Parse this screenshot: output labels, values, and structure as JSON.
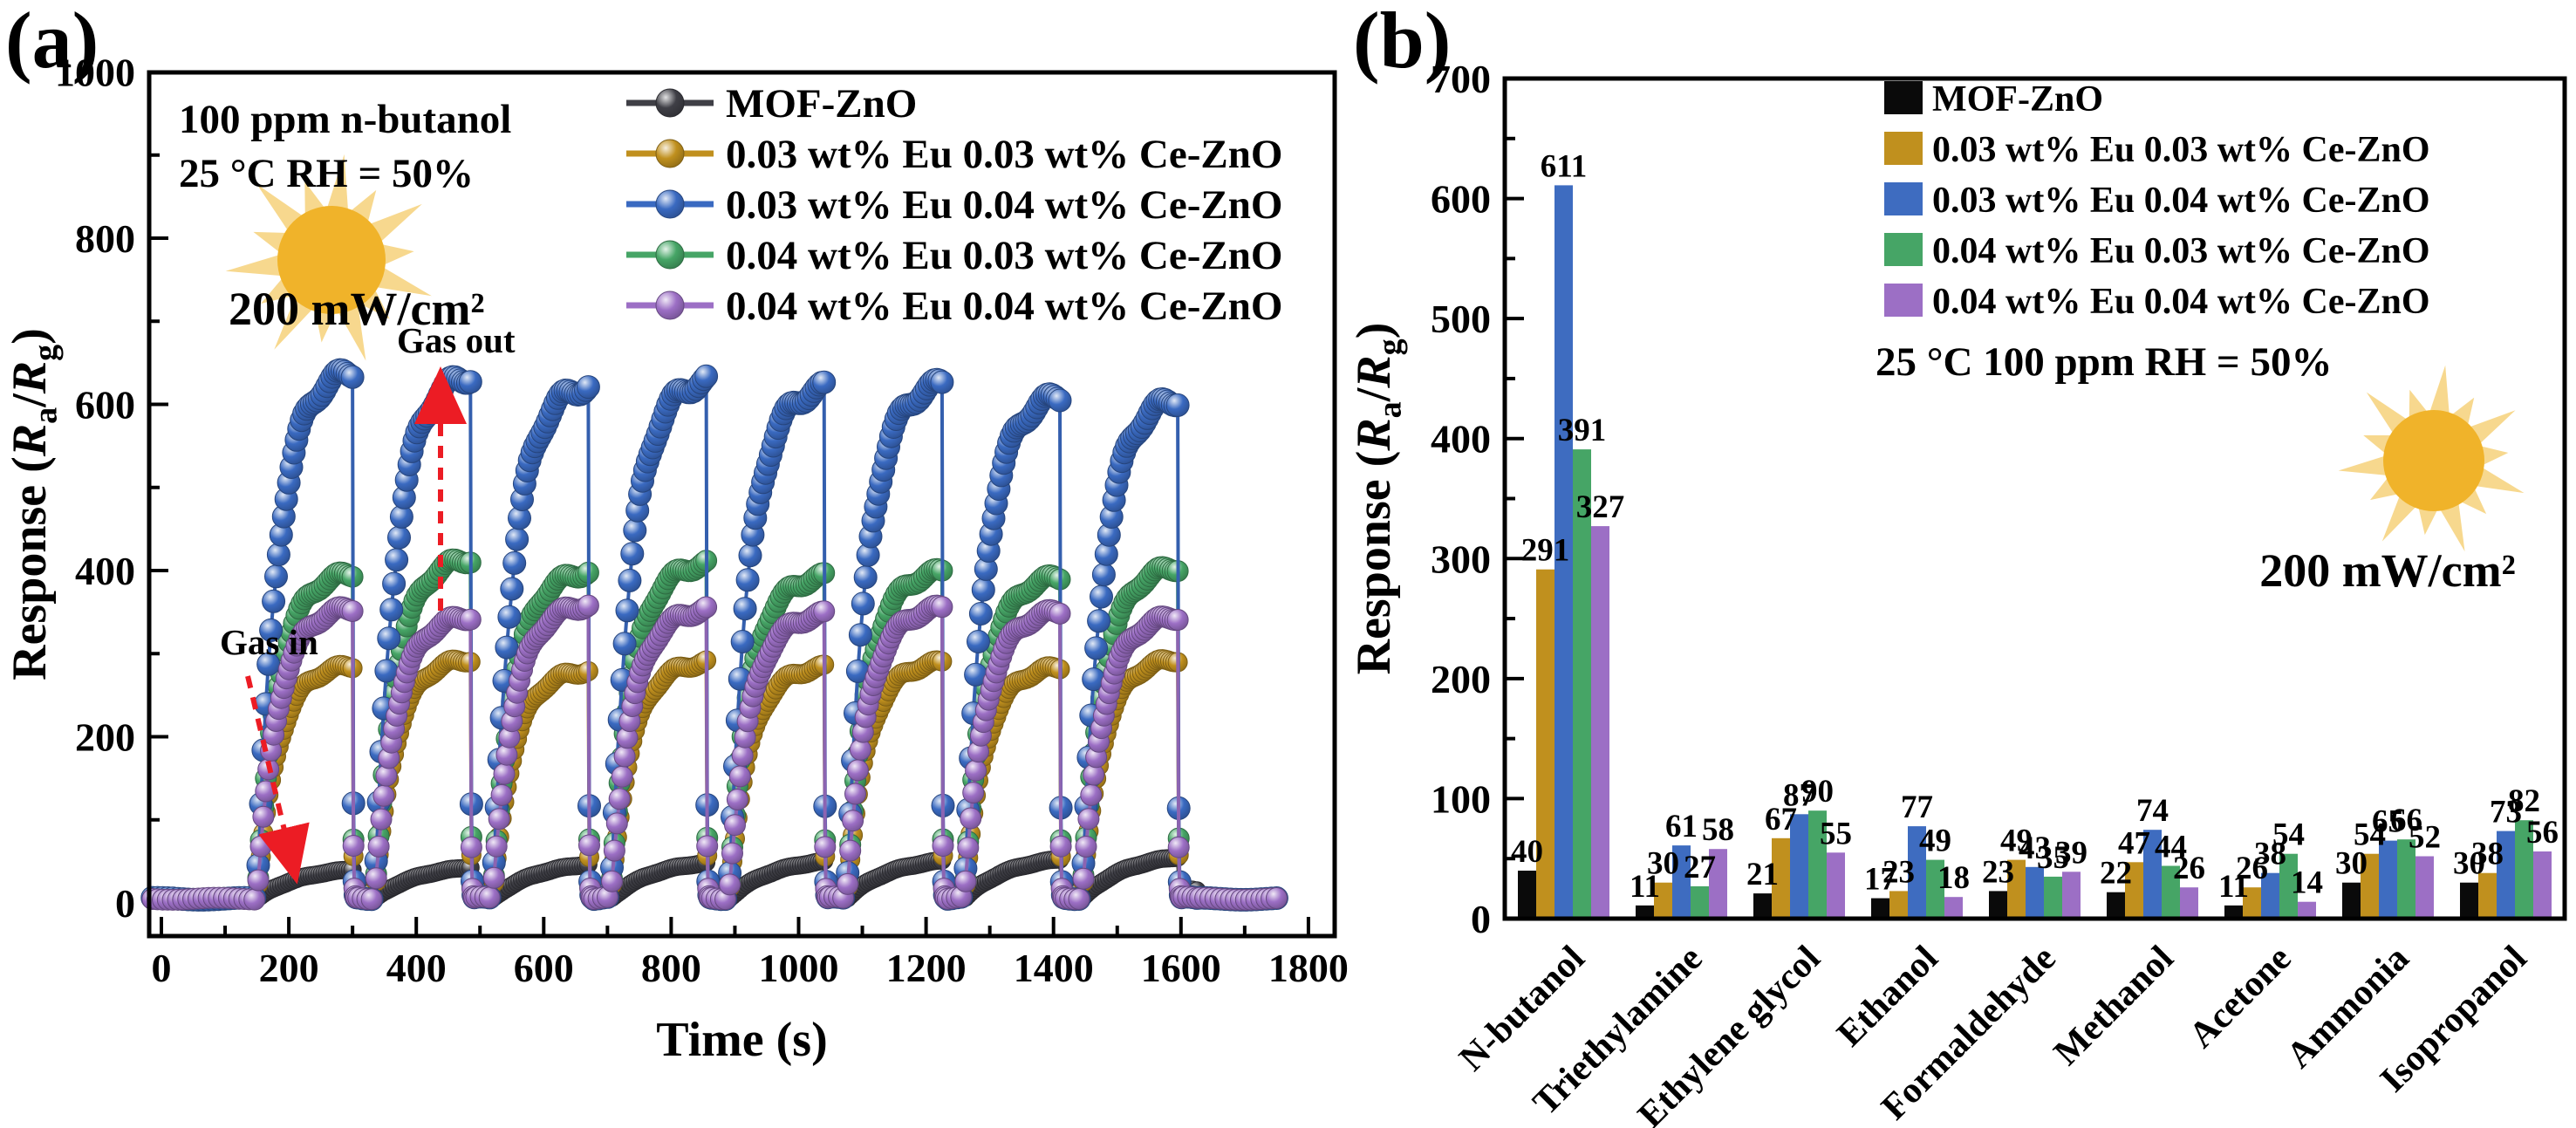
{
  "figure": {
    "panels": [
      {
        "id": "a",
        "label": "(a)"
      },
      {
        "id": "b",
        "label": "(b)"
      }
    ]
  },
  "chart_data": [
    {
      "type": "line",
      "panel": "a",
      "xlabel": "Time (s)",
      "ylabel": "Response (Ra/Rg)",
      "ylabel_segments": [
        {
          "t": "Response ("
        },
        {
          "t": "R",
          "style": "italic"
        },
        {
          "t": "a",
          "style": "sub"
        },
        {
          "t": "/"
        },
        {
          "t": "R",
          "style": "italic"
        },
        {
          "t": "g",
          "style": "sub"
        },
        {
          "t": ")"
        }
      ],
      "xlim": [
        0,
        1800
      ],
      "ylim": [
        0,
        1000
      ],
      "x_ticks": [
        0,
        200,
        400,
        600,
        800,
        1000,
        1200,
        1400,
        1600,
        1800
      ],
      "y_ticks": [
        0,
        200,
        400,
        600,
        800,
        1000
      ],
      "annotations": {
        "conditions": [
          "100 ppm n-butanol",
          "25 °C RH = 50%"
        ],
        "power": "200 mW/cm²",
        "gas_in": "Gas in",
        "gas_out": "Gas out"
      },
      "accent_colors": {
        "arrow_red": "#ec1c24",
        "sun_core": "#f0b32a",
        "sun_rays": "#f7d88e"
      },
      "cycles": {
        "first_gas_in_s": 150,
        "exposure_s": 150,
        "recovery_s": 35,
        "count": 8,
        "baseline": 5
      },
      "series": [
        {
          "name": "MOF-ZnO",
          "color": "#3f3f46",
          "marker_r": 10,
          "tau_s": 70,
          "recovery_floor": 15,
          "peaks": [
            45,
            48,
            52,
            54,
            56,
            57,
            59,
            62
          ]
        },
        {
          "name": "0.03 wt% Eu 0.03 wt% Ce-ZnO",
          "color": "#c0901e",
          "marker_r": 11,
          "tau_s": 32,
          "recovery_floor": 6,
          "peaks": [
            288,
            296,
            282,
            292,
            286,
            292,
            286,
            296
          ]
        },
        {
          "name": "0.03 wt% Eu 0.04 wt% Ce-ZnO",
          "color": "#3a6ac1",
          "marker_r": 13,
          "tau_s": 32,
          "recovery_floor": 6,
          "peaks": [
            645,
            640,
            628,
            634,
            625,
            630,
            615,
            612
          ]
        },
        {
          "name": "0.04 wt% Eu 0.03 wt% Ce-ZnO",
          "color": "#46a566",
          "marker_r": 12,
          "tau_s": 32,
          "recovery_floor": 6,
          "peaks": [
            400,
            418,
            402,
            412,
            396,
            402,
            396,
            408
          ]
        },
        {
          "name": "0.04 wt% Eu 0.04 wt% Ce-ZnO",
          "color": "#9c6fc5",
          "marker_r": 12,
          "tau_s": 32,
          "recovery_floor": 6,
          "peaks": [
            358,
            348,
            362,
            356,
            350,
            358,
            354,
            348
          ]
        }
      ],
      "draw_order": [
        0,
        1,
        3,
        2,
        4
      ]
    },
    {
      "type": "bar",
      "panel": "b",
      "ylabel": "Response (Ra/Rg)",
      "ylim": [
        0,
        700
      ],
      "y_ticks": [
        0,
        100,
        200,
        300,
        400,
        500,
        600,
        700
      ],
      "categories": [
        "N-butanol",
        "Triethylamine",
        "Ethylene glycol",
        "Ethanol",
        "Formaldehyde",
        "Methanol",
        "Acetone",
        "Ammonia",
        "Isopropanol"
      ],
      "series": [
        {
          "name": "MOF-ZnO",
          "color": "#0a0a0a",
          "values": [
            40,
            11,
            21,
            17,
            23,
            22,
            11,
            30,
            30
          ]
        },
        {
          "name": "0.03 wt% Eu 0.03 wt% Ce-ZnO",
          "color": "#c0901e",
          "values": [
            291,
            30,
            67,
            23,
            49,
            47,
            26,
            54,
            38
          ]
        },
        {
          "name": "0.03 wt% Eu 0.04 wt% Ce-ZnO",
          "color": "#3e6cc0",
          "values": [
            611,
            61,
            87,
            77,
            43,
            74,
            38,
            65,
            73
          ]
        },
        {
          "name": "0.04 wt% Eu 0.03 wt% Ce-ZnO",
          "color": "#46a566",
          "values": [
            391,
            27,
            90,
            49,
            35,
            44,
            54,
            66,
            82
          ]
        },
        {
          "name": "0.04 wt% Eu 0.04 wt% Ce-ZnO",
          "color": "#9c6fc5",
          "values": [
            327,
            58,
            55,
            18,
            39,
            26,
            14,
            52,
            56
          ]
        }
      ],
      "annotations": {
        "conditions": "25 °C 100 ppm RH = 50%",
        "power": "200 mW/cm²"
      },
      "accent_colors": {
        "sun_core": "#f0b32a",
        "sun_rays": "#f7d88e"
      },
      "legend_position": "upper right"
    }
  ]
}
